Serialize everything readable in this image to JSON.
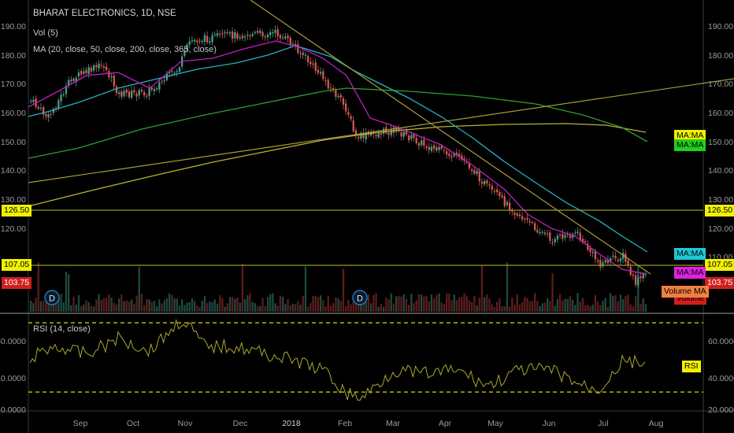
{
  "header": {
    "symbol_line": "BHARAT ELECTRONICS, 1D, NSE",
    "vol_line": "Vol (5)",
    "ma_line": "MA (20, close, 50, close, 200, close, 365, close)",
    "rsi_line": "RSI (14, close)"
  },
  "price_axis": {
    "ticks": [
      "190.00",
      "180.00",
      "170.00",
      "160.00",
      "150.00",
      "140.00",
      "130.00",
      "120.00",
      "110.00"
    ],
    "left_ticks": [
      "190.00",
      "180.00",
      "170.00",
      "160.00",
      "150.00",
      "140.00",
      "130.00",
      "120.00"
    ]
  },
  "rsi_axis": {
    "ticks": [
      "60.0000",
      "40.0000",
      "20.0000"
    ]
  },
  "time_axis": {
    "labels": [
      "Sep",
      "Oct",
      "Nov",
      "Dec",
      "2018",
      "Feb",
      "Mar",
      "Apr",
      "May",
      "Jun",
      "Jul",
      "Aug"
    ]
  },
  "badges": {
    "left_126": "126.50",
    "left_107": "107.05",
    "left_103": "103.75",
    "right_126": "126.50",
    "right_107": "107.05",
    "right_103": "103.75",
    "ma_ma_1": "MA:MA",
    "ma_ma_2": "MA:MA",
    "ma_ma_3": "MA:MA",
    "ma_ma_4": "MA:MA",
    "volume_ma": "Volume MA",
    "volume": "Volume",
    "rsi": "RSI",
    "dividend": "D"
  },
  "colors": {
    "background": "#000000",
    "up_candle": "#4a9e8a",
    "down_candle": "#d25a52",
    "ma20": "#c020c0",
    "ma50": "#2ab0c0",
    "ma200": "#2e9e2e",
    "ma365": "#b8b030",
    "trendline": "#a89a3a",
    "hline": "#9a9a20",
    "rsi_line": "#a8a830",
    "rsi_band": "#d8d800",
    "badge_yellow": "#f0f000",
    "badge_red": "#d0201e",
    "badge_cyan": "#1ec8d8",
    "badge_magenta": "#e020e0",
    "badge_green": "#20d020",
    "badge_orange": "#f08040"
  }
}
